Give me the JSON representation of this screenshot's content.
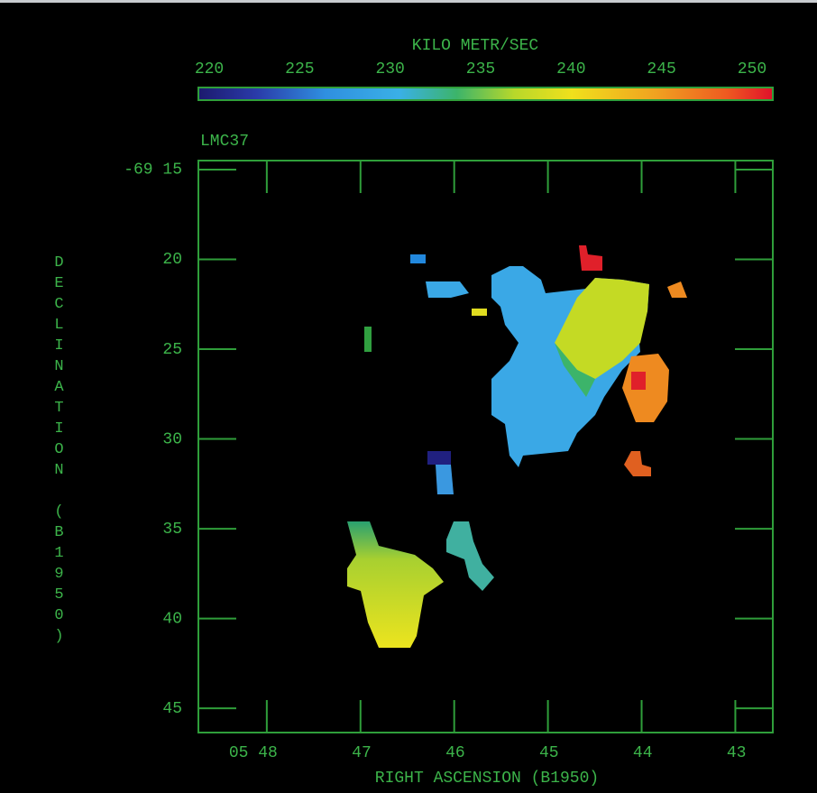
{
  "chart_data": {
    "type": "velocity-map",
    "title": "LMC37",
    "colorbar": {
      "label": "KILO METR/SEC",
      "lim": [
        219.4,
        251.15
      ],
      "ticks": [
        220,
        225,
        230,
        235,
        240,
        245,
        250
      ]
    },
    "x_label": "RIGHT ASCENSION (B1950)",
    "y_label": "DECLINATION (B1950)",
    "xlim": [
      48.73,
      42.6
    ],
    "xticks": [
      {
        "value": 48,
        "label": "05 48"
      },
      47,
      46,
      45,
      44,
      43
    ],
    "ylim": [
      14.5,
      46.35
    ],
    "yticks": [
      {
        "value": 15,
        "label": "-69 15"
      },
      20,
      25,
      30,
      35,
      40,
      45
    ]
  }
}
